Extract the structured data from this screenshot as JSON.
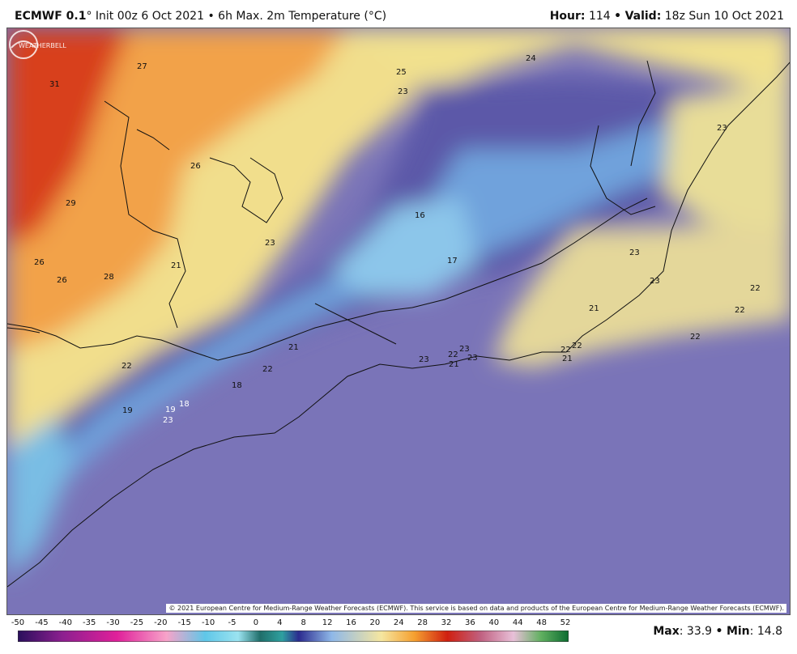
{
  "header": {
    "model": "ECMWF 0.1",
    "degree": "°",
    "init": "Init 00z 6 Oct 2021",
    "bullet": "•",
    "product": "6h Max. 2m Temperature (°C)",
    "hour_label": "Hour:",
    "hour_value": "114",
    "valid_label": "Valid:",
    "valid_value": "18z Sun 10 Oct 2021"
  },
  "map": {
    "copyright": "© 2021 European Centre for Medium-Range Weather Forecasts (ECMWF). This service is based on data and products of the European Centre for Medium-Range Weather Forecasts (ECMWF).",
    "logo_text": "WEATHERBELL",
    "labels": [
      "31",
      "27",
      "25",
      "24",
      "23",
      "23",
      "26",
      "29",
      "16",
      "23",
      "26",
      "26",
      "28",
      "21",
      "17",
      "23",
      "23",
      "22",
      "22",
      "21",
      "22",
      "21",
      "22",
      "23",
      "22",
      "23",
      "23",
      "22",
      "22",
      "21",
      "21",
      "22",
      "18",
      "19",
      "19",
      "18",
      "23"
    ]
  },
  "colorbar": {
    "ticks": [
      "-50",
      "-45",
      "-40",
      "-35",
      "-30",
      "-25",
      "-20",
      "-15",
      "-10",
      "-5",
      "0",
      "4",
      "8",
      "12",
      "16",
      "20",
      "24",
      "28",
      "32",
      "36",
      "40",
      "44",
      "48",
      "52"
    ]
  },
  "stats": {
    "max_label": "Max",
    "max_value": "33.9",
    "min_label": "Min",
    "min_value": "14.8"
  },
  "colors": {
    "ocean": "#7a74b8",
    "hot": "#e8701e",
    "warm": "#f3d77c",
    "cool": "#6d8ed3",
    "cold": "#7fc4e3"
  }
}
